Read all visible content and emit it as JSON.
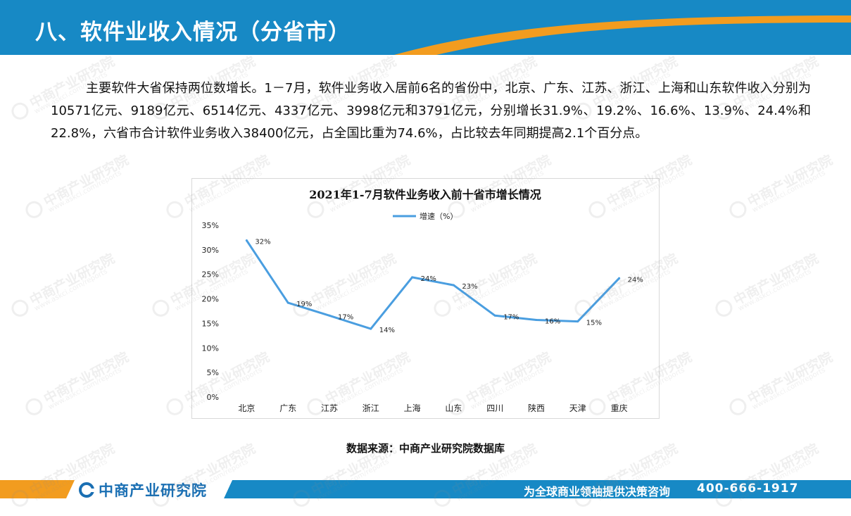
{
  "header": {
    "title": "八、软件业收入情况（分省市）",
    "bar_color": "#1789c5",
    "accent_color": "#f29c1f"
  },
  "intro": {
    "paragraph": "主要软件大省保持两位数增长。1－7月，软件业务收入居前6名的省份中，北京、广东、江苏、浙江、上海和山东软件收入分别为10571亿元、9189亿元、6514亿元、4337亿元、3998亿元和3791亿元，分别增长31.9%、19.2%、16.6%、13.9%、24.4%和22.8%，六省市合计软件业务收入38400亿元，占全国比重为74.6%，占比较去年同期提高2.1个百分点。"
  },
  "chart_data": {
    "type": "line",
    "title": "2021年1-7月软件业务收入前十省市增长情况",
    "categories": [
      "北京",
      "广东",
      "江苏",
      "浙江",
      "上海",
      "山东",
      "四川",
      "陕西",
      "天津",
      "重庆"
    ],
    "series": [
      {
        "name": "增速（%）",
        "values": [
          31.9,
          19.2,
          16.6,
          13.9,
          24.4,
          22.8,
          16.6,
          15.7,
          15.4,
          24.2
        ],
        "data_labels": [
          "32%",
          "19%",
          "17%",
          "14%",
          "24%",
          "23%",
          "17%",
          "16%",
          "15%",
          "24%"
        ],
        "color": "#4a9ee0"
      }
    ],
    "yticks": [
      "0%",
      "5%",
      "10%",
      "15%",
      "20%",
      "25%",
      "30%",
      "35%"
    ],
    "ylim": [
      0,
      35
    ],
    "grid": false,
    "legend_position": "top"
  },
  "source": {
    "text": "数据来源：中商产业研究院数据库"
  },
  "footer": {
    "logo_text": "中商产业研究院",
    "slogan": "为全球商业领袖提供决策咨询",
    "phone": "400-666-1917",
    "bar_color": "#1789c5",
    "accent_color": "#f29c1f"
  },
  "watermark": {
    "text": "中商产业研究院",
    "subtext": "www.askci.com/reports"
  }
}
